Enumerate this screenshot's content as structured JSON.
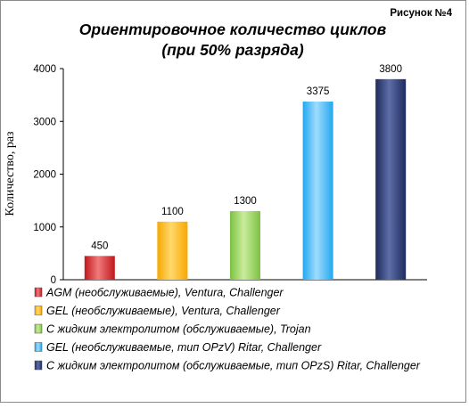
{
  "figure_label": "Рисунок  №4",
  "chart_data": {
    "type": "bar",
    "title": [
      "Ориентировочное  количество  циклов",
      "(при 50% разряда)"
    ],
    "ylabel": "Количество, раз",
    "xlabel": "",
    "ylim": [
      0,
      4000
    ],
    "yticks": [
      0,
      1000,
      2000,
      3000,
      4000
    ],
    "grid": false,
    "legend_position": "bottom",
    "series": [
      {
        "name": "AGM (необслуживаемые), Ventura, Challenger",
        "value": 450,
        "label": "450",
        "color": "#c0171c",
        "color_light": "#f07a7a"
      },
      {
        "name": "GEL (необслуживаемые), Ventura, Challenger",
        "value": 1100,
        "label": "1100",
        "color": "#f7a800",
        "color_light": "#ffd86b"
      },
      {
        "name": "С жидким электролитом (обслуживаемые), Trojan",
        "value": 1300,
        "label": "1300",
        "color": "#7cc242",
        "color_light": "#c9ec9c"
      },
      {
        "name": "GEL (необслуживаемые, тип OPzV) Ritar, Challenger",
        "value": 3375,
        "label": "3375",
        "color": "#22a7ee",
        "color_light": "#9fdcff"
      },
      {
        "name": "С жидким электролитом (обслуживаемые, тип OPzS) Ritar, Challenger",
        "value": 3800,
        "label": "3800",
        "color": "#1e2a5c",
        "color_light": "#5d6ea8"
      }
    ]
  }
}
